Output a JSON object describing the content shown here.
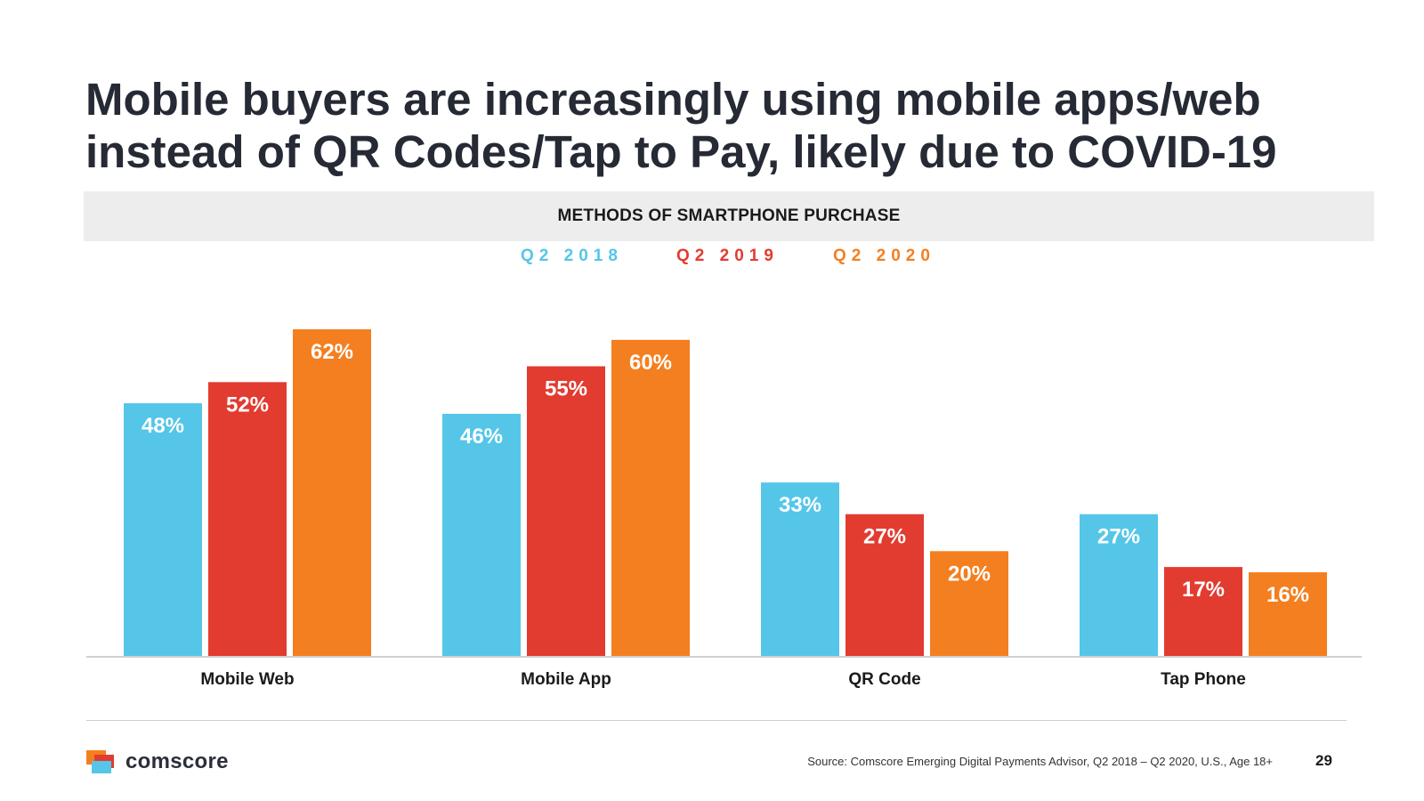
{
  "title": {
    "line1": "Mobile buyers are increasingly using mobile apps/web",
    "line2": "instead of QR Codes/Tap to Pay, likely due to COVID-19"
  },
  "chart_data": {
    "type": "bar",
    "title": "METHODS OF SMARTPHONE PURCHASE",
    "categories": [
      "Mobile Web",
      "Mobile App",
      "QR Code",
      "Tap Phone"
    ],
    "series": [
      {
        "name": "Q2 2018",
        "color": "#55c6e8",
        "values": [
          48,
          46,
          33,
          27
        ]
      },
      {
        "name": "Q2 2019",
        "color": "#e23b30",
        "values": [
          52,
          55,
          27,
          17
        ]
      },
      {
        "name": "Q2 2020",
        "color": "#f47f20",
        "values": [
          62,
          60,
          20,
          16
        ]
      }
    ],
    "value_format": "percent",
    "ylim": [
      0,
      62
    ],
    "grid": false,
    "legend_position": "top-center",
    "xlabel": "",
    "ylabel": ""
  },
  "footer": {
    "brand": "comscore",
    "source": "Source: Comscore Emerging Digital Payments Advisor,  Q2 2018 – Q2 2020, U.S., Age 18+",
    "page_number": "29"
  },
  "colors": {
    "title": "#252a35",
    "header_bg": "#ededed",
    "axis": "#d0d0d0",
    "logo_orange": "#f47f20",
    "logo_red": "#e23b30",
    "logo_blue": "#55c6e8"
  }
}
